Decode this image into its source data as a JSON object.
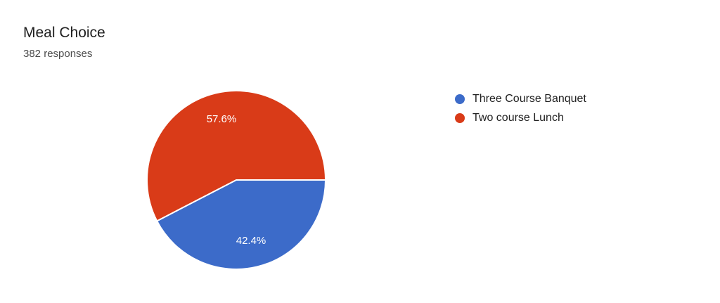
{
  "page": {
    "background_color": "#ffffff"
  },
  "chart_data": {
    "type": "pie",
    "title": "Meal Choice",
    "subtitle": "382 responses",
    "total_responses": 382,
    "slices": [
      {
        "label": "Three Course Banquet",
        "value": 42.4,
        "display": "42.4%",
        "color": "#3c6bc9"
      },
      {
        "label": "Two course Lunch",
        "value": 57.6,
        "display": "57.6%",
        "color": "#d93b18"
      }
    ],
    "start_angle_deg": 0,
    "direction": "clockwise",
    "slice_border_color": "#ffffff",
    "slice_label_color": "#ffffff",
    "legend_position": "right"
  }
}
